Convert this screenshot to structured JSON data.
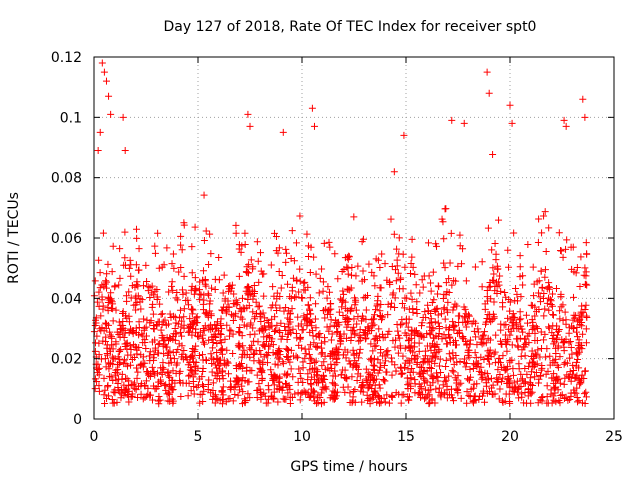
{
  "chart_data": {
    "type": "scatter",
    "title": "Day 127 of 2018, Rate Of TEC Index for receiver spt0",
    "xlabel": "GPS time / hours",
    "ylabel": "ROTI / TECUs",
    "xlim": [
      0,
      25
    ],
    "ylim": [
      0,
      0.12
    ],
    "xticks": [
      0,
      5,
      10,
      15,
      20,
      25
    ],
    "xtick_labels": [
      "0",
      "5",
      "10",
      "15",
      "20",
      "25"
    ],
    "yticks": [
      0,
      0.02,
      0.04,
      0.06,
      0.08,
      0.1,
      0.12
    ],
    "ytick_labels": [
      "0",
      "0.02",
      "0.04",
      "0.06",
      "0.08",
      "0.1",
      "0.12"
    ],
    "grid": true,
    "marker": "+",
    "color": "#ff0000",
    "series": [
      {
        "name": "ROTI",
        "x_range": [
          0,
          23.7
        ],
        "typical_range": [
          0.005,
          0.07
        ],
        "dense_band": [
          0.005,
          0.055
        ],
        "peaks": [
          {
            "x": 0.4,
            "y": 0.118
          },
          {
            "x": 0.5,
            "y": 0.115
          },
          {
            "x": 0.6,
            "y": 0.112
          },
          {
            "x": 0.7,
            "y": 0.107
          },
          {
            "x": 0.8,
            "y": 0.101
          },
          {
            "x": 0.3,
            "y": 0.095
          },
          {
            "x": 0.2,
            "y": 0.089
          },
          {
            "x": 1.4,
            "y": 0.1
          },
          {
            "x": 1.5,
            "y": 0.089
          },
          {
            "x": 7.4,
            "y": 0.101
          },
          {
            "x": 7.5,
            "y": 0.097
          },
          {
            "x": 9.1,
            "y": 0.095
          },
          {
            "x": 10.5,
            "y": 0.103
          },
          {
            "x": 10.6,
            "y": 0.097
          },
          {
            "x": 14.9,
            "y": 0.094
          },
          {
            "x": 17.2,
            "y": 0.099
          },
          {
            "x": 17.8,
            "y": 0.098
          },
          {
            "x": 18.9,
            "y": 0.115
          },
          {
            "x": 19.0,
            "y": 0.108
          },
          {
            "x": 20.0,
            "y": 0.104
          },
          {
            "x": 20.1,
            "y": 0.098
          },
          {
            "x": 22.6,
            "y": 0.099
          },
          {
            "x": 22.7,
            "y": 0.097
          },
          {
            "x": 23.5,
            "y": 0.106
          },
          {
            "x": 23.6,
            "y": 0.1
          }
        ]
      }
    ]
  }
}
